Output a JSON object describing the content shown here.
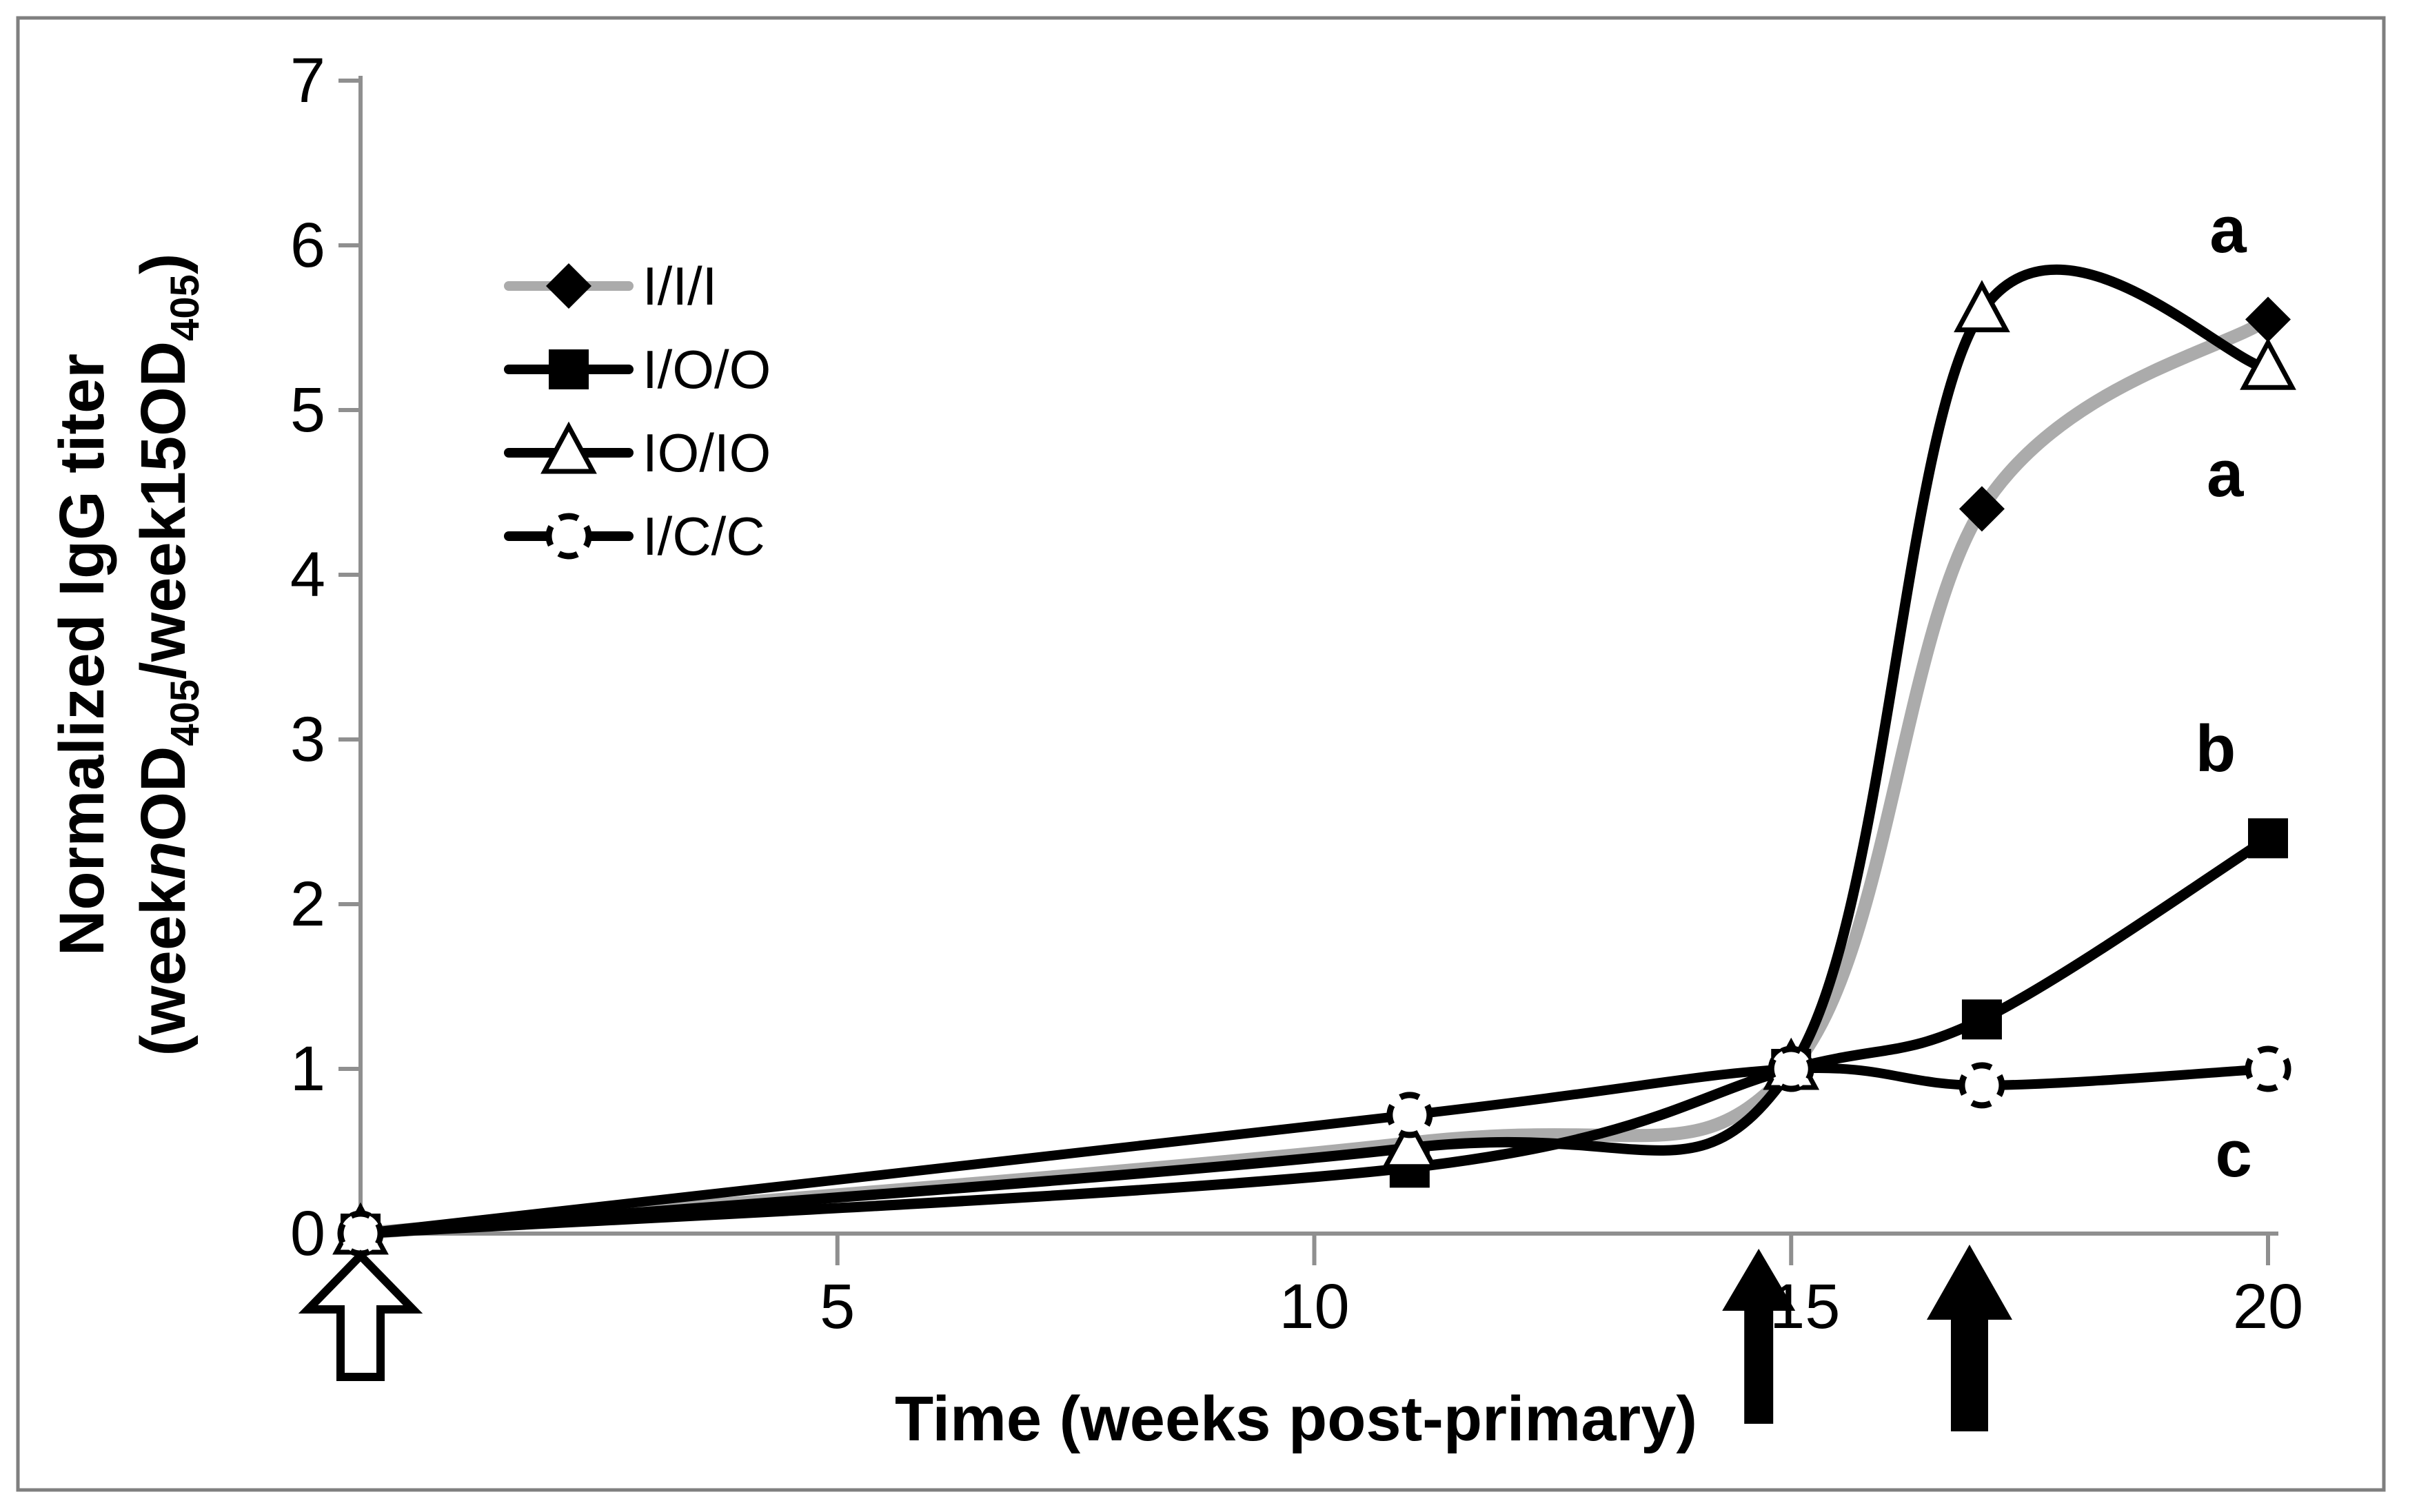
{
  "figure": {
    "background": "#ffffff",
    "border_color": "#7f7f7f",
    "axis_color": "#8f8f8f",
    "text_color": "#000000"
  },
  "chart_data": {
    "type": "line",
    "title": "",
    "xlabel": "Time (weeks post-primary)",
    "ylabel_line1": "Normalized IgG titer",
    "ylabel_line2_segments": [
      {
        "t": "(week"
      },
      {
        "t": "n",
        "italic": true
      },
      {
        "t": "OD"
      },
      {
        "t": "405",
        "sub": true
      },
      {
        "t": "/week15OD"
      },
      {
        "t": "405",
        "sub": true
      },
      {
        "t": ")"
      }
    ],
    "xlim": [
      0,
      20
    ],
    "ylim": [
      0,
      7
    ],
    "x_ticks": [
      5,
      10,
      15,
      20
    ],
    "y_ticks": [
      0,
      1,
      2,
      3,
      4,
      5,
      6,
      7
    ],
    "grid": false,
    "legend_position": "inside-upper-left",
    "categories_weeks": [
      0,
      11,
      15,
      17,
      20
    ],
    "series": [
      {
        "name": "I/I/I",
        "line_color": "#ababab",
        "marker": "diamond",
        "marker_fill": "#000000",
        "x": [
          0,
          11,
          15,
          17,
          20
        ],
        "y": [
          0,
          0.55,
          1.0,
          4.4,
          5.55
        ],
        "show_marker": [
          true,
          false,
          true,
          true,
          true
        ]
      },
      {
        "name": "I/O/O",
        "line_color": "#000000",
        "marker": "square",
        "marker_fill": "#000000",
        "x": [
          0,
          11,
          15,
          17,
          20
        ],
        "y": [
          0,
          0.4,
          1.0,
          1.3,
          2.4
        ],
        "show_marker": [
          true,
          true,
          true,
          true,
          true
        ]
      },
      {
        "name": "IO/IO",
        "line_color": "#000000",
        "marker": "triangle",
        "marker_fill": "#ffffff",
        "x": [
          0,
          11,
          15,
          17,
          20
        ],
        "y": [
          0,
          0.52,
          1.0,
          5.6,
          5.25
        ],
        "show_marker": [
          true,
          true,
          true,
          true,
          true
        ]
      },
      {
        "name": "I/C/C",
        "line_color": "#000000",
        "marker": "circle-dashed",
        "marker_fill": "#ffffff",
        "x": [
          0,
          11,
          15,
          17,
          20
        ],
        "y": [
          0,
          0.72,
          1.0,
          0.9,
          1.0
        ],
        "show_marker": [
          true,
          true,
          true,
          true,
          true
        ]
      }
    ],
    "annotations": [
      {
        "text": "a",
        "week": 19.58,
        "value": 6.1
      },
      {
        "text": "a",
        "week": 19.55,
        "value": 4.62
      },
      {
        "text": "b",
        "week": 19.45,
        "value": 2.95
      },
      {
        "text": "c",
        "week": 19.64,
        "value": 0.49
      }
    ],
    "arrows": [
      {
        "type": "open",
        "week": 0
      },
      {
        "type": "filled",
        "week": 14.66
      },
      {
        "type": "filled-large",
        "week": 16.87
      }
    ]
  }
}
